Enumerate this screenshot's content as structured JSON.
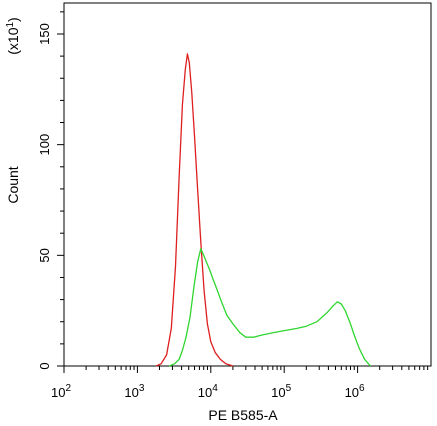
{
  "chart_data": {
    "type": "line",
    "xlabel": "PE B585-A",
    "ylabel": "Count",
    "y_multiplier_label": "(x10",
    "y_multiplier_exp": "1",
    "y_multiplier_close": ")",
    "xscale": "log",
    "xlim": [
      100,
      10000000
    ],
    "ylim": [
      0,
      164
    ],
    "x_ticks": [
      {
        "base": "10",
        "exp": "2",
        "value": 100
      },
      {
        "base": "10",
        "exp": "3",
        "value": 1000
      },
      {
        "base": "10",
        "exp": "4",
        "value": 10000
      },
      {
        "base": "10",
        "exp": "5",
        "value": 100000
      },
      {
        "base": "10",
        "exp": "6",
        "value": 1000000
      }
    ],
    "y_ticks": [
      {
        "label": "0",
        "value": 0
      },
      {
        "label": "50",
        "value": 50
      },
      {
        "label": "100",
        "value": 100
      },
      {
        "label": "150",
        "value": 150
      }
    ],
    "grid": false,
    "series": [
      {
        "color": "#dd1f1f",
        "points": [
          [
            1800,
            0
          ],
          [
            2100,
            1
          ],
          [
            2500,
            5
          ],
          [
            2900,
            17
          ],
          [
            3300,
            45
          ],
          [
            3700,
            85
          ],
          [
            4100,
            118
          ],
          [
            4500,
            134
          ],
          [
            4800,
            141
          ],
          [
            5100,
            137
          ],
          [
            5500,
            124
          ],
          [
            6000,
            104
          ],
          [
            6600,
            80
          ],
          [
            7300,
            56
          ],
          [
            8100,
            34
          ],
          [
            9000,
            19
          ],
          [
            10000,
            11
          ],
          [
            11500,
            6
          ],
          [
            13500,
            3
          ],
          [
            16000,
            1
          ],
          [
            20000,
            0
          ]
        ]
      },
      {
        "color": "#2fd62f",
        "points": [
          [
            2700,
            0
          ],
          [
            3200,
            1
          ],
          [
            3700,
            3
          ],
          [
            4100,
            7
          ],
          [
            4600,
            13
          ],
          [
            5200,
            22
          ],
          [
            5900,
            36
          ],
          [
            6600,
            47
          ],
          [
            7300,
            53
          ],
          [
            8000,
            50
          ],
          [
            8700,
            47
          ],
          [
            9500,
            44
          ],
          [
            10500,
            40
          ],
          [
            12000,
            35
          ],
          [
            14000,
            29
          ],
          [
            16500,
            23
          ],
          [
            20000,
            19
          ],
          [
            25000,
            15
          ],
          [
            30000,
            13
          ],
          [
            38000,
            13
          ],
          [
            50000,
            14
          ],
          [
            70000,
            15
          ],
          [
            100000,
            16
          ],
          [
            150000,
            17
          ],
          [
            200000,
            18
          ],
          [
            280000,
            20
          ],
          [
            380000,
            24
          ],
          [
            460000,
            27
          ],
          [
            530000,
            29
          ],
          [
            600000,
            28
          ],
          [
            680000,
            25
          ],
          [
            780000,
            20
          ],
          [
            900000,
            14
          ],
          [
            1050000,
            8
          ],
          [
            1250000,
            3
          ],
          [
            1500000,
            0
          ]
        ]
      }
    ]
  }
}
